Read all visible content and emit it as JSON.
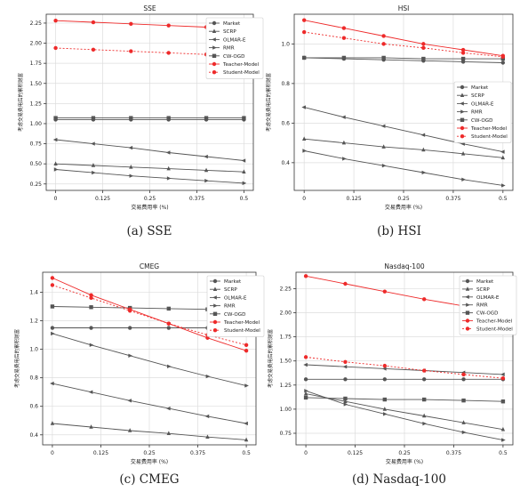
{
  "legend_labels": [
    "Market",
    "SCRP",
    "OLMAR-E",
    "RMR",
    "CW-OGD",
    "Teacher-Model",
    "Student-Model"
  ],
  "colors": {
    "gray": "#555555",
    "red": "#ee2a2a",
    "grid": "#dddddd"
  },
  "chart_data": [
    {
      "type": "line",
      "title": "SSE",
      "caption": "(a)  SSE",
      "xlabel": "交易费用率 (%)",
      "ylabel": "考虑交易费用后的累积财富",
      "x_ticks": [
        0,
        0.125,
        0.25,
        0.375,
        0.5
      ],
      "y_ticks": [
        0.25,
        0.5,
        0.75,
        1.0,
        1.25,
        1.5,
        1.75,
        2.0,
        2.25
      ],
      "y_tick_labels": [
        "0.25",
        "0.50",
        "0.75",
        "1.00",
        "1.25",
        "1.50",
        "1.75",
        "2.00",
        "2.25"
      ],
      "xlim": [
        -0.025,
        0.525
      ],
      "ylim": [
        0.17,
        2.36
      ],
      "grid": true,
      "legend_position": "top-right",
      "series": [
        {
          "name": "Market",
          "x": [
            0,
            0.1,
            0.2,
            0.3,
            0.4,
            0.5
          ],
          "y": [
            1.05,
            1.05,
            1.05,
            1.05,
            1.05,
            1.05
          ]
        },
        {
          "name": "SCRP",
          "x": [
            0,
            0.1,
            0.2,
            0.3,
            0.4,
            0.5
          ],
          "y": [
            0.5,
            0.48,
            0.46,
            0.44,
            0.42,
            0.4
          ]
        },
        {
          "name": "OLMAR-E",
          "x": [
            0,
            0.1,
            0.2,
            0.3,
            0.4,
            0.5
          ],
          "y": [
            0.8,
            0.75,
            0.7,
            0.64,
            0.59,
            0.54
          ]
        },
        {
          "name": "RMR",
          "x": [
            0,
            0.1,
            0.2,
            0.3,
            0.4,
            0.5
          ],
          "y": [
            0.43,
            0.39,
            0.35,
            0.32,
            0.29,
            0.26
          ]
        },
        {
          "name": "CW-OGD",
          "x": [
            0,
            0.1,
            0.2,
            0.3,
            0.4,
            0.5
          ],
          "y": [
            1.07,
            1.07,
            1.07,
            1.07,
            1.07,
            1.07
          ]
        },
        {
          "name": "Teacher-Model",
          "x": [
            0,
            0.1,
            0.2,
            0.3,
            0.4,
            0.5
          ],
          "y": [
            2.28,
            2.26,
            2.24,
            2.22,
            2.2,
            2.18
          ]
        },
        {
          "name": "Student-Model",
          "x": [
            0,
            0.1,
            0.2,
            0.3,
            0.4,
            0.5
          ],
          "y": [
            1.94,
            1.92,
            1.9,
            1.88,
            1.86,
            1.84
          ]
        }
      ]
    },
    {
      "type": "line",
      "title": "HSI",
      "caption": "(b)  HSI",
      "xlabel": "交易费用率 (%)",
      "ylabel": "考虑交易费用后的累积财富",
      "x_ticks": [
        0,
        0.125,
        0.25,
        0.375,
        0.5
      ],
      "y_ticks": [
        0.4,
        0.6,
        0.8,
        1.0
      ],
      "y_tick_labels": [
        "0.4",
        "0.6",
        "0.8",
        "1.0"
      ],
      "xlim": [
        -0.025,
        0.525
      ],
      "ylim": [
        0.26,
        1.15
      ],
      "grid": true,
      "legend_position": "right",
      "series": [
        {
          "name": "Market",
          "x": [
            0,
            0.1,
            0.2,
            0.3,
            0.4,
            0.5
          ],
          "y": [
            0.93,
            0.925,
            0.92,
            0.915,
            0.91,
            0.905
          ]
        },
        {
          "name": "SCRP",
          "x": [
            0,
            0.1,
            0.2,
            0.3,
            0.4,
            0.5
          ],
          "y": [
            0.52,
            0.5,
            0.48,
            0.465,
            0.445,
            0.425
          ]
        },
        {
          "name": "OLMAR-E",
          "x": [
            0,
            0.1,
            0.2,
            0.3,
            0.4,
            0.5
          ],
          "y": [
            0.68,
            0.63,
            0.585,
            0.54,
            0.495,
            0.455
          ]
        },
        {
          "name": "RMR",
          "x": [
            0,
            0.1,
            0.2,
            0.3,
            0.4,
            0.5
          ],
          "y": [
            0.46,
            0.42,
            0.385,
            0.35,
            0.315,
            0.285
          ]
        },
        {
          "name": "CW-OGD",
          "x": [
            0,
            0.1,
            0.2,
            0.3,
            0.4,
            0.5
          ],
          "y": [
            0.93,
            0.93,
            0.93,
            0.925,
            0.925,
            0.925
          ]
        },
        {
          "name": "Teacher-Model",
          "x": [
            0,
            0.1,
            0.2,
            0.3,
            0.4,
            0.5
          ],
          "y": [
            1.12,
            1.08,
            1.04,
            1.0,
            0.97,
            0.94
          ]
        },
        {
          "name": "Student-Model",
          "x": [
            0,
            0.1,
            0.2,
            0.3,
            0.4,
            0.5
          ],
          "y": [
            1.06,
            1.03,
            1.0,
            0.98,
            0.955,
            0.935
          ]
        }
      ]
    },
    {
      "type": "line",
      "title": "CMEG",
      "caption": "(c)  CMEG",
      "xlabel": "交易费用率 (%)",
      "ylabel": "考虑交易费用后的累积财富",
      "x_ticks": [
        0,
        0.125,
        0.25,
        0.375,
        0.5
      ],
      "y_ticks": [
        0.4,
        0.6,
        0.8,
        1.0,
        1.2,
        1.4
      ],
      "y_tick_labels": [
        "0.4",
        "0.6",
        "0.8",
        "1.0",
        "1.2",
        "1.4"
      ],
      "xlim": [
        -0.025,
        0.525
      ],
      "ylim": [
        0.33,
        1.54
      ],
      "grid": true,
      "legend_position": "top-right",
      "series": [
        {
          "name": "Market",
          "x": [
            0,
            0.1,
            0.2,
            0.3,
            0.4,
            0.5
          ],
          "y": [
            1.15,
            1.15,
            1.15,
            1.15,
            1.15,
            1.15
          ]
        },
        {
          "name": "SCRP",
          "x": [
            0,
            0.1,
            0.2,
            0.3,
            0.4,
            0.5
          ],
          "y": [
            0.48,
            0.455,
            0.43,
            0.41,
            0.385,
            0.365
          ]
        },
        {
          "name": "OLMAR-E",
          "x": [
            0,
            0.1,
            0.2,
            0.3,
            0.4,
            0.5
          ],
          "y": [
            0.76,
            0.7,
            0.64,
            0.585,
            0.53,
            0.48
          ]
        },
        {
          "name": "RMR",
          "x": [
            0,
            0.1,
            0.2,
            0.3,
            0.4,
            0.5
          ],
          "y": [
            1.11,
            1.03,
            0.955,
            0.88,
            0.81,
            0.745
          ]
        },
        {
          "name": "CW-OGD",
          "x": [
            0,
            0.1,
            0.2,
            0.3,
            0.4,
            0.5
          ],
          "y": [
            1.3,
            1.295,
            1.29,
            1.285,
            1.28,
            1.275
          ]
        },
        {
          "name": "Teacher-Model",
          "x": [
            0,
            0.1,
            0.2,
            0.3,
            0.4,
            0.5
          ],
          "y": [
            1.5,
            1.38,
            1.28,
            1.18,
            1.08,
            0.99
          ]
        },
        {
          "name": "Student-Model",
          "x": [
            0,
            0.1,
            0.2,
            0.3,
            0.4,
            0.5
          ],
          "y": [
            1.45,
            1.36,
            1.27,
            1.18,
            1.1,
            1.03
          ]
        }
      ]
    },
    {
      "type": "line",
      "title": "Nasdaq-100",
      "caption": "(d)  Nasdaq-100",
      "xlabel": "交易费用率 (%)",
      "ylabel": "考虑交易费用后的累积财富",
      "x_ticks": [
        0,
        0.125,
        0.25,
        0.375,
        0.5
      ],
      "y_ticks": [
        0.75,
        1.0,
        1.25,
        1.5,
        1.75,
        2.0,
        2.25
      ],
      "y_tick_labels": [
        "0.75",
        "1.00",
        "1.25",
        "1.50",
        "1.75",
        "2.00",
        "2.25"
      ],
      "xlim": [
        -0.025,
        0.525
      ],
      "ylim": [
        0.63,
        2.42
      ],
      "grid": true,
      "legend_position": "top-right",
      "series": [
        {
          "name": "Market",
          "x": [
            0,
            0.1,
            0.2,
            0.3,
            0.4,
            0.5
          ],
          "y": [
            1.31,
            1.31,
            1.31,
            1.31,
            1.31,
            1.31
          ]
        },
        {
          "name": "SCRP",
          "x": [
            0,
            0.1,
            0.2,
            0.3,
            0.4,
            0.5
          ],
          "y": [
            1.16,
            1.08,
            1.0,
            0.93,
            0.86,
            0.79
          ]
        },
        {
          "name": "OLMAR-E",
          "x": [
            0,
            0.1,
            0.2,
            0.3,
            0.4,
            0.5
          ],
          "y": [
            1.46,
            1.44,
            1.42,
            1.4,
            1.38,
            1.36
          ]
        },
        {
          "name": "RMR",
          "x": [
            0,
            0.1,
            0.2,
            0.3,
            0.4,
            0.5
          ],
          "y": [
            1.19,
            1.05,
            0.95,
            0.85,
            0.76,
            0.68
          ]
        },
        {
          "name": "CW-OGD",
          "x": [
            0,
            0.1,
            0.2,
            0.3,
            0.4,
            0.5
          ],
          "y": [
            1.12,
            1.11,
            1.1,
            1.1,
            1.09,
            1.08
          ]
        },
        {
          "name": "Teacher-Model",
          "x": [
            0,
            0.1,
            0.2,
            0.3,
            0.4,
            0.5
          ],
          "y": [
            2.38,
            2.3,
            2.22,
            2.14,
            2.07,
            2.01
          ]
        },
        {
          "name": "Student-Model",
          "x": [
            0,
            0.1,
            0.2,
            0.3,
            0.4,
            0.5
          ],
          "y": [
            1.54,
            1.49,
            1.45,
            1.4,
            1.36,
            1.32
          ]
        }
      ]
    }
  ]
}
